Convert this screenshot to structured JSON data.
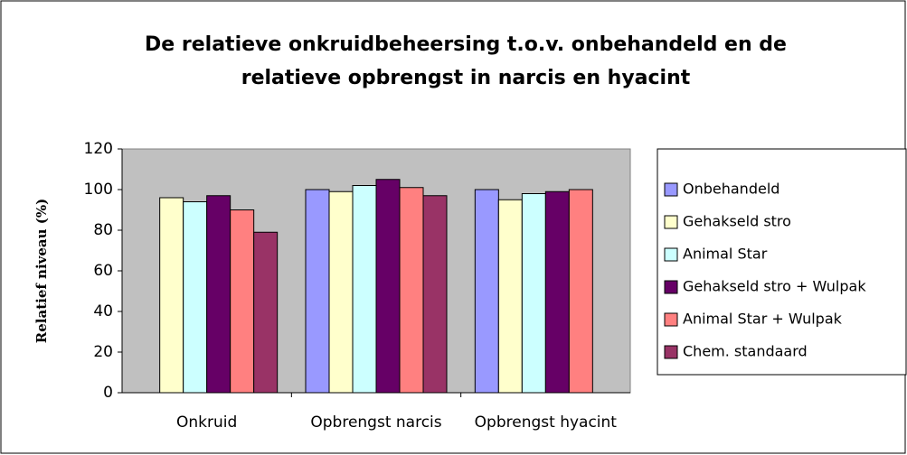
{
  "chart_data": {
    "type": "bar",
    "title": [
      "De relatieve onkruidbeheersing t.o.v. onbehandeld en de",
      "relatieve opbrengst in narcis en hyacint"
    ],
    "ylabel": "Relatief niveau (%)",
    "categories": [
      "Onkruid",
      "Opbrengst narcis",
      "Opbrengst hyacint"
    ],
    "series": [
      {
        "name": "Onbehandeld",
        "color": "#9999ff",
        "values": [
          null,
          100,
          100
        ]
      },
      {
        "name": "Gehakseld stro",
        "color": "#ffffcc",
        "values": [
          96,
          99,
          95
        ]
      },
      {
        "name": "Animal Star",
        "color": "#ccffff",
        "values": [
          94,
          102,
          98
        ]
      },
      {
        "name": "Gehakseld stro + Wulpak",
        "color": "#660066",
        "values": [
          97,
          105,
          99
        ]
      },
      {
        "name": "Animal Star + Wulpak",
        "color": "#ff8080",
        "values": [
          90,
          101,
          100
        ]
      },
      {
        "name": "Chem. standaard",
        "color": "#993366",
        "values": [
          79,
          97,
          null
        ]
      }
    ],
    "ylim": [
      0,
      120
    ],
    "yticks": [
      0,
      20,
      40,
      60,
      80,
      100,
      120
    ],
    "grid": false,
    "legend": "right"
  }
}
